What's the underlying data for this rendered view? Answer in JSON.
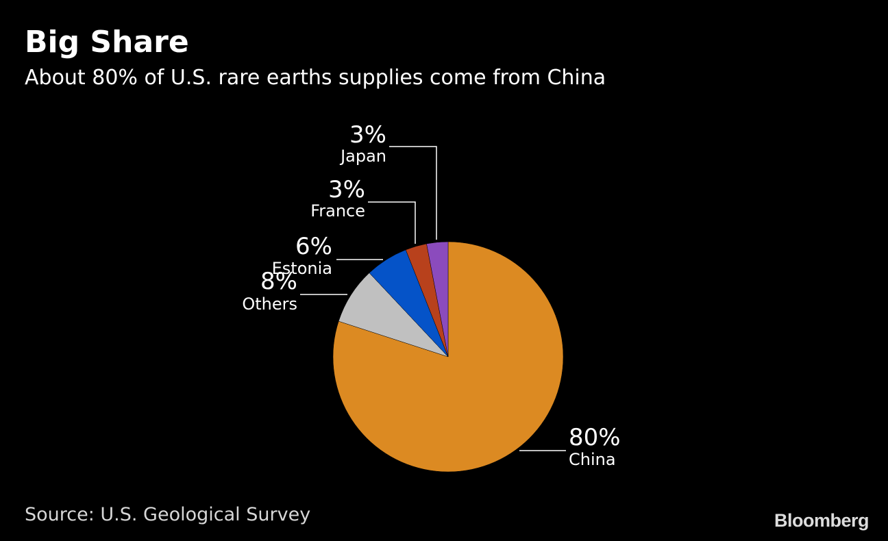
{
  "header": {
    "title": "Big Share",
    "subtitle": "About 80% of U.S. rare earths supplies come from China"
  },
  "footer": {
    "source": "Source: U.S. Geological Survey",
    "brand": "Bloomberg"
  },
  "chart_data": {
    "type": "pie",
    "title": "Big Share",
    "subtitle": "About 80% of U.S. rare earths supplies come from China",
    "slices": [
      {
        "name": "China",
        "value": 80,
        "label": "80%",
        "color": "#dc8a22"
      },
      {
        "name": "Others",
        "value": 8,
        "label": "8%",
        "color": "#c0c0c0"
      },
      {
        "name": "Estonia",
        "value": 6,
        "label": "6%",
        "color": "#0553c8"
      },
      {
        "name": "France",
        "value": 3,
        "label": "3%",
        "color": "#b8411c"
      },
      {
        "name": "Japan",
        "value": 3,
        "label": "3%",
        "color": "#8b4bbd"
      }
    ],
    "start": "top",
    "direction": "clockwise",
    "legend": "none"
  }
}
